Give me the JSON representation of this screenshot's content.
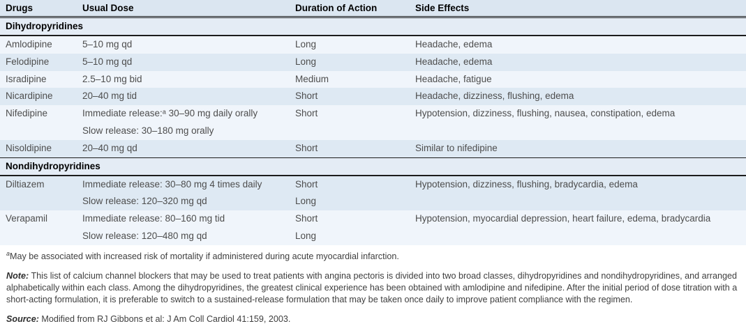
{
  "colors": {
    "header_bg": "#dbe6f1",
    "section_bg": "#e4ecf5",
    "row_light": "#f0f5fb",
    "row_dark": "#dee9f3",
    "rule": "#1c1c1c"
  },
  "table": {
    "columns": [
      "Drugs",
      "Usual Dose",
      "Duration of Action",
      "Side Effects"
    ],
    "sections": [
      {
        "title": "Dihydropyridines",
        "rows": [
          {
            "drug": "Amlodipine",
            "dose": [
              "5–10 mg qd"
            ],
            "duration": [
              "Long"
            ],
            "side_effects": [
              "Headache, edema"
            ]
          },
          {
            "drug": "Felodipine",
            "dose": [
              "5–10 mg qd"
            ],
            "duration": [
              "Long"
            ],
            "side_effects": [
              "Headache, edema"
            ]
          },
          {
            "drug": "Isradipine",
            "dose": [
              "2.5–10 mg bid"
            ],
            "duration": [
              "Medium"
            ],
            "side_effects": [
              "Headache, fatigue"
            ]
          },
          {
            "drug": "Nicardipine",
            "dose": [
              "20–40 mg tid"
            ],
            "duration": [
              "Short"
            ],
            "side_effects": [
              "Headache, dizziness, flushing, edema"
            ]
          },
          {
            "drug": "Nifedipine",
            "dose": [
              "Immediate release:ᵃ 30–90 mg daily orally",
              "Slow release: 30–180 mg orally"
            ],
            "duration": [
              "Short"
            ],
            "side_effects": [
              "Hypotension, dizziness, flushing, nausea, constipation, edema"
            ]
          },
          {
            "drug": "Nisoldipine",
            "dose": [
              "20–40 mg qd"
            ],
            "duration": [
              "Short"
            ],
            "side_effects": [
              "Similar to nifedipine"
            ]
          }
        ]
      },
      {
        "title": "Nondihydropyridines",
        "rows": [
          {
            "drug": "Diltiazem",
            "dose": [
              "Immediate release: 30–80 mg 4 times daily",
              "Slow release: 120–320 mg qd"
            ],
            "duration": [
              "Short",
              "Long"
            ],
            "side_effects": [
              "Hypotension, dizziness, flushing, bradycardia, edema"
            ]
          },
          {
            "drug": "Verapamil",
            "dose": [
              "Immediate release: 80–160 mg tid",
              "Slow release: 120–480 mg qd"
            ],
            "duration": [
              "Short",
              "Long"
            ],
            "side_effects": [
              "Hypotension, myocardial depression, heart failure, edema, bradycardia"
            ]
          }
        ]
      }
    ]
  },
  "footnotes": {
    "a_marker": "a",
    "a_text": "May be associated with increased risk of mortality if administered during acute myocardial infarction.",
    "note_label": "Note:",
    "note_text": " This list of calcium channel blockers that may be used to treat patients with angina pectoris is divided into two broad classes, dihydropyridines and nondihydropyridines, and arranged alphabetically within each class. Among the dihydropyridines, the greatest clinical experience has been obtained with amlodipine and nifedipine. After the initial period of dose titration with a short-acting formulation, it is preferable to switch to a sustained-release formulation that may be taken once daily to improve patient compliance with the regimen.",
    "source_label": "Source:",
    "source_text": " Modified from RJ Gibbons et al: J Am Coll Cardiol 41:159, 2003."
  }
}
